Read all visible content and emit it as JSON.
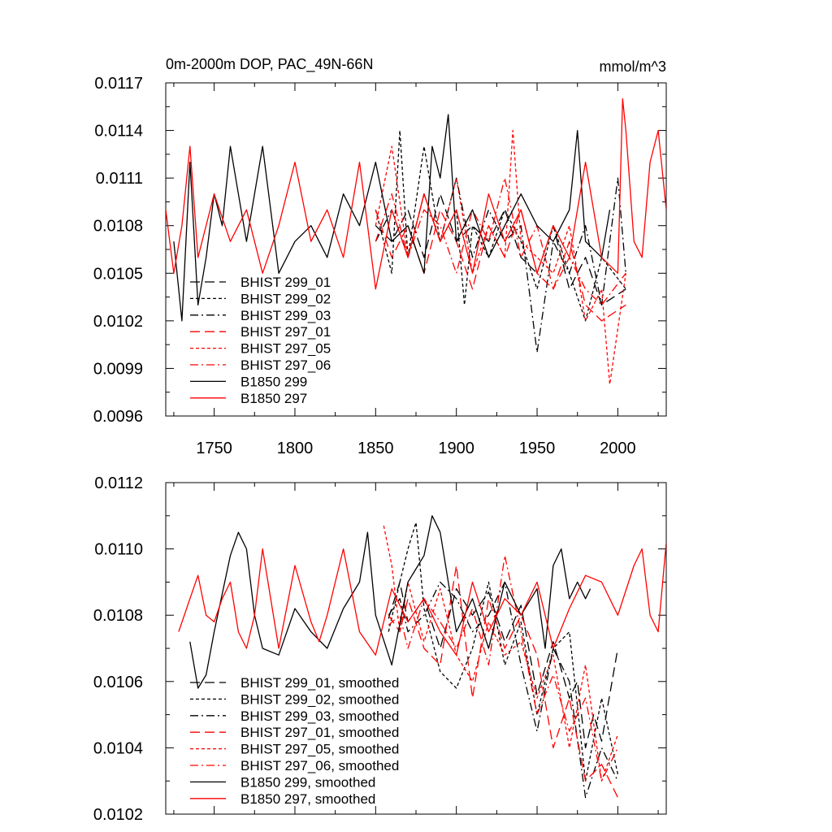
{
  "chart_data": [
    {
      "type": "line",
      "title": "0m-2000m DOP, PAC_49N-66N",
      "units": "mmol/m^3",
      "xlim": [
        1720,
        2030
      ],
      "ylim": [
        0.0096,
        0.0117
      ],
      "xticks": [
        1750,
        1800,
        1850,
        1900,
        1950,
        2000
      ],
      "yticks": [
        "0.0096",
        "0.0099",
        "0.0102",
        "0.0105",
        "0.0108",
        "0.0111",
        "0.0114",
        "0.0117"
      ],
      "legend": "bottom-left",
      "series": [
        {
          "name": "BHIST 299_01",
          "color": "#000000",
          "dash": "long-dash",
          "x": [
            1850,
            1860,
            1870,
            1880,
            1890,
            1900,
            1910,
            1920,
            1930,
            1940,
            1950,
            1960,
            1970,
            1980,
            1990,
            2005
          ],
          "y": [
            0.0108,
            0.0107,
            0.0109,
            0.0106,
            0.011,
            0.0107,
            0.0108,
            0.0107,
            0.0109,
            0.0106,
            0.0105,
            0.0108,
            0.0104,
            0.0106,
            0.0103,
            0.0104
          ]
        },
        {
          "name": "BHIST 299_02",
          "color": "#000000",
          "dash": "short-dash",
          "x": [
            1850,
            1860,
            1865,
            1870,
            1880,
            1890,
            1900,
            1905,
            1910,
            1920,
            1930,
            1940,
            1950,
            1960,
            1970,
            1980,
            1990,
            2005
          ],
          "y": [
            0.0109,
            0.0105,
            0.0114,
            0.0106,
            0.0113,
            0.0107,
            0.0109,
            0.0103,
            0.0108,
            0.0106,
            0.0109,
            0.0107,
            0.0104,
            0.0108,
            0.0105,
            0.0102,
            0.0106,
            0.0104
          ]
        },
        {
          "name": "BHIST 299_03",
          "color": "#000000",
          "dash": "dash-dot",
          "x": [
            1850,
            1860,
            1870,
            1880,
            1890,
            1900,
            1910,
            1920,
            1930,
            1940,
            1950,
            1960,
            1970,
            1980,
            1990,
            2000,
            2005
          ],
          "y": [
            0.0107,
            0.0109,
            0.0106,
            0.011,
            0.0107,
            0.0111,
            0.0106,
            0.0109,
            0.0107,
            0.0108,
            0.01,
            0.0107,
            0.0105,
            0.0108,
            0.0103,
            0.0111,
            0.0105
          ]
        },
        {
          "name": "BHIST 297_01",
          "color": "#ff0000",
          "dash": "long-dash",
          "x": [
            1850,
            1860,
            1870,
            1880,
            1890,
            1900,
            1910,
            1920,
            1930,
            1940,
            1950,
            1960,
            1970,
            1980,
            1990,
            2005
          ],
          "y": [
            0.0109,
            0.0106,
            0.0108,
            0.0105,
            0.0109,
            0.0107,
            0.0104,
            0.0108,
            0.0106,
            0.0109,
            0.0105,
            0.0104,
            0.0107,
            0.0103,
            0.0102,
            0.0103
          ]
        },
        {
          "name": "BHIST 297_05",
          "color": "#ff0000",
          "dash": "short-dash",
          "x": [
            1850,
            1860,
            1870,
            1880,
            1890,
            1900,
            1910,
            1920,
            1930,
            1935,
            1940,
            1950,
            1960,
            1970,
            1980,
            1990,
            1995,
            2005
          ],
          "y": [
            0.0108,
            0.0113,
            0.0106,
            0.011,
            0.0107,
            0.0111,
            0.0105,
            0.0108,
            0.0106,
            0.0114,
            0.0107,
            0.0106,
            0.0105,
            0.0108,
            0.0102,
            0.0104,
            0.0098,
            0.0105
          ]
        },
        {
          "name": "BHIST 297_06",
          "color": "#ff0000",
          "dash": "dash-dot",
          "x": [
            1850,
            1860,
            1870,
            1880,
            1890,
            1900,
            1910,
            1920,
            1930,
            1940,
            1950,
            1960,
            1970,
            1980,
            1990,
            2005
          ],
          "y": [
            0.0107,
            0.011,
            0.0106,
            0.0109,
            0.0108,
            0.0105,
            0.0109,
            0.0107,
            0.0111,
            0.0106,
            0.0108,
            0.0104,
            0.0106,
            0.0104,
            0.0103,
            0.0105
          ]
        },
        {
          "name": "B1850 299",
          "color": "#000000",
          "dash": "solid",
          "x": [
            1725,
            1730,
            1735,
            1740,
            1745,
            1750,
            1755,
            1760,
            1765,
            1770,
            1780,
            1790,
            1800,
            1810,
            1820,
            1830,
            1840,
            1850,
            1860,
            1870,
            1880,
            1885,
            1890,
            1895,
            1900,
            1910,
            1920,
            1930,
            1940,
            1950,
            1960,
            1970,
            1975,
            1980,
            1990,
            1995
          ],
          "y": [
            0.0107,
            0.0102,
            0.0112,
            0.0103,
            0.0106,
            0.011,
            0.0108,
            0.0113,
            0.011,
            0.0107,
            0.0113,
            0.0105,
            0.0107,
            0.0108,
            0.0106,
            0.011,
            0.0108,
            0.0112,
            0.0107,
            0.0108,
            0.0105,
            0.0113,
            0.0111,
            0.0115,
            0.0107,
            0.0109,
            0.0106,
            0.0108,
            0.011,
            0.0108,
            0.0107,
            0.0109,
            0.0114,
            0.0107,
            0.0106,
            0.0109
          ]
        },
        {
          "name": "B1850 297",
          "color": "#ff0000",
          "dash": "solid",
          "x": [
            1720,
            1725,
            1730,
            1735,
            1740,
            1750,
            1760,
            1770,
            1780,
            1790,
            1800,
            1810,
            1820,
            1830,
            1840,
            1850,
            1860,
            1870,
            1880,
            1890,
            1900,
            1910,
            1920,
            1930,
            1940,
            1950,
            1960,
            1970,
            1980,
            1990,
            2000,
            2003,
            2005,
            2010,
            2015,
            2020,
            2025,
            2030
          ],
          "y": [
            0.0109,
            0.0105,
            0.0108,
            0.0113,
            0.0106,
            0.011,
            0.0107,
            0.0109,
            0.0105,
            0.0108,
            0.0112,
            0.0107,
            0.0109,
            0.0106,
            0.0112,
            0.0104,
            0.0109,
            0.0106,
            0.011,
            0.0107,
            0.0109,
            0.0105,
            0.011,
            0.0107,
            0.0109,
            0.0105,
            0.0108,
            0.0106,
            0.0112,
            0.0106,
            0.0105,
            0.0116,
            0.0114,
            0.0107,
            0.0106,
            0.0112,
            0.0114,
            0.0109
          ]
        }
      ]
    },
    {
      "type": "line",
      "xlim": [
        1720,
        2030
      ],
      "ylim": [
        0.0102,
        0.0112
      ],
      "xticks": [
        1750,
        1800,
        1850,
        1900,
        1950,
        2000
      ],
      "yticks": [
        "0.0102",
        "0.0104",
        "0.0106",
        "0.0108",
        "0.0110",
        "0.0112"
      ],
      "legend": "bottom-left",
      "series": [
        {
          "name": "BHIST 299_01, smoothed",
          "color": "#000000",
          "dash": "long-dash",
          "x": [
            1858,
            1865,
            1870,
            1880,
            1890,
            1900,
            1910,
            1920,
            1930,
            1940,
            1950,
            1960,
            1970,
            1975,
            1980,
            1985,
            1990,
            2000
          ],
          "y": [
            0.01079,
            0.0109,
            0.01078,
            0.01085,
            0.0107,
            0.01088,
            0.0108,
            0.01087,
            0.01072,
            0.01083,
            0.01056,
            0.01072,
            0.01055,
            0.0106,
            0.0104,
            0.0105,
            0.01042,
            0.0107
          ]
        },
        {
          "name": "BHIST 299_02, smoothed",
          "color": "#000000",
          "dash": "short-dash",
          "x": [
            1858,
            1865,
            1870,
            1875,
            1880,
            1890,
            1900,
            1910,
            1920,
            1930,
            1940,
            1950,
            1960,
            1970,
            1980,
            1990,
            2000
          ],
          "y": [
            0.01075,
            0.0109,
            0.011,
            0.01108,
            0.01082,
            0.01063,
            0.01058,
            0.0107,
            0.0109,
            0.01065,
            0.01078,
            0.0105,
            0.0107,
            0.01075,
            0.0103,
            0.01055,
            0.01032
          ]
        },
        {
          "name": "BHIST 299_03, smoothed",
          "color": "#000000",
          "dash": "dash-dot",
          "x": [
            1858,
            1865,
            1870,
            1880,
            1890,
            1900,
            1910,
            1920,
            1930,
            1940,
            1950,
            1960,
            1970,
            1980,
            1990,
            2000
          ],
          "y": [
            0.0108,
            0.01085,
            0.01075,
            0.0108,
            0.0109,
            0.01085,
            0.01075,
            0.0108,
            0.0109,
            0.01065,
            0.01045,
            0.0107,
            0.0106,
            0.01025,
            0.0104,
            0.0103
          ]
        },
        {
          "name": "BHIST 297_01, smoothed",
          "color": "#ff0000",
          "dash": "long-dash",
          "x": [
            1858,
            1865,
            1870,
            1880,
            1890,
            1900,
            1910,
            1920,
            1930,
            1940,
            1950,
            1960,
            1970,
            1980,
            1990,
            2000
          ],
          "y": [
            0.0108,
            0.01075,
            0.01085,
            0.0107,
            0.01065,
            0.01095,
            0.01055,
            0.01085,
            0.0107,
            0.0108,
            0.01068,
            0.0104,
            0.01055,
            0.0103,
            0.01035,
            0.01025
          ]
        },
        {
          "name": "BHIST 297_05, smoothed",
          "color": "#ff0000",
          "dash": "short-dash",
          "x": [
            1855,
            1860,
            1865,
            1870,
            1880,
            1890,
            1900,
            1910,
            1920,
            1930,
            1940,
            1950,
            1960,
            1970,
            1980,
            1990,
            2000
          ],
          "y": [
            0.01107,
            0.01095,
            0.01075,
            0.0109,
            0.01072,
            0.01088,
            0.01068,
            0.0106,
            0.01078,
            0.01068,
            0.01072,
            0.01055,
            0.01068,
            0.0104,
            0.01065,
            0.0103,
            0.01044
          ]
        },
        {
          "name": "BHIST 297_06, smoothed",
          "color": "#ff0000",
          "dash": "dash-dot",
          "x": [
            1858,
            1865,
            1870,
            1880,
            1890,
            1900,
            1910,
            1920,
            1930,
            1940,
            1950,
            1960,
            1970,
            1980,
            1990,
            2000
          ],
          "y": [
            0.01077,
            0.0108,
            0.0107,
            0.01085,
            0.01078,
            0.0107,
            0.01082,
            0.01065,
            0.01098,
            0.01075,
            0.0105,
            0.01062,
            0.01045,
            0.01055,
            0.0103,
            0.0104
          ]
        },
        {
          "name": "B1850 299, smoothed",
          "color": "#000000",
          "dash": "solid",
          "x": [
            1735,
            1740,
            1745,
            1750,
            1760,
            1765,
            1770,
            1775,
            1780,
            1790,
            1800,
            1810,
            1820,
            1830,
            1840,
            1845,
            1850,
            1860,
            1870,
            1880,
            1885,
            1890,
            1900,
            1910,
            1920,
            1930,
            1940,
            1950,
            1955,
            1960,
            1965,
            1970,
            1975,
            1980,
            1983
          ],
          "y": [
            0.01072,
            0.01058,
            0.01062,
            0.01075,
            0.01098,
            0.01105,
            0.011,
            0.0108,
            0.0107,
            0.01068,
            0.01082,
            0.01075,
            0.0107,
            0.01082,
            0.0109,
            0.01105,
            0.0108,
            0.01065,
            0.0109,
            0.01098,
            0.0111,
            0.01105,
            0.01075,
            0.01085,
            0.0107,
            0.0109,
            0.0108,
            0.01088,
            0.0107,
            0.01095,
            0.011,
            0.01085,
            0.0109,
            0.01085,
            0.01088
          ]
        },
        {
          "name": "B1850 297, smoothed",
          "color": "#ff0000",
          "dash": "solid",
          "x": [
            1728,
            1735,
            1740,
            1745,
            1750,
            1755,
            1760,
            1765,
            1770,
            1775,
            1780,
            1790,
            1800,
            1810,
            1815,
            1820,
            1830,
            1840,
            1850,
            1860,
            1870,
            1880,
            1890,
            1900,
            1910,
            1920,
            1930,
            1940,
            1950,
            1960,
            1970,
            1980,
            1990,
            2000,
            2010,
            2015,
            2020,
            2025,
            2030
          ],
          "y": [
            0.01075,
            0.01085,
            0.01092,
            0.0108,
            0.01078,
            0.01085,
            0.0109,
            0.01075,
            0.0107,
            0.0108,
            0.011,
            0.0107,
            0.01095,
            0.01078,
            0.01072,
            0.0108,
            0.011,
            0.01075,
            0.01068,
            0.01088,
            0.01078,
            0.01085,
            0.01075,
            0.01068,
            0.0109,
            0.01075,
            0.01085,
            0.0108,
            0.0109,
            0.0107,
            0.01082,
            0.01092,
            0.0109,
            0.0108,
            0.01095,
            0.011,
            0.0108,
            0.01075,
            0.01102
          ]
        }
      ]
    }
  ]
}
